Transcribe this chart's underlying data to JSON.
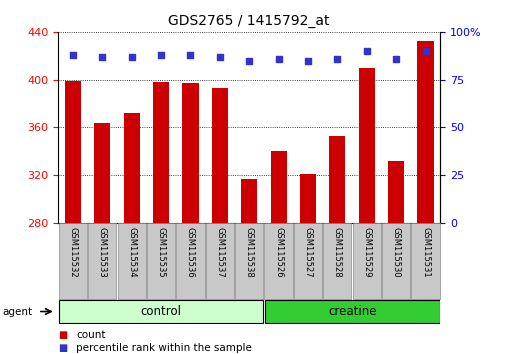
{
  "title": "GDS2765 / 1415792_at",
  "samples": [
    "GSM115532",
    "GSM115533",
    "GSM115534",
    "GSM115535",
    "GSM115536",
    "GSM115537",
    "GSM115538",
    "GSM115526",
    "GSM115527",
    "GSM115528",
    "GSM115529",
    "GSM115530",
    "GSM115531"
  ],
  "counts": [
    399,
    364,
    372,
    398,
    397,
    393,
    317,
    340,
    321,
    353,
    410,
    332,
    432
  ],
  "percentiles": [
    88,
    87,
    87,
    88,
    88,
    87,
    85,
    86,
    85,
    86,
    90,
    86,
    90
  ],
  "y_min": 280,
  "y_max": 440,
  "y_ticks": [
    280,
    320,
    360,
    400,
    440
  ],
  "right_y_ticks": [
    0,
    25,
    50,
    75,
    100
  ],
  "right_y_labels": [
    "0",
    "25",
    "50",
    "75",
    "100%"
  ],
  "n_control": 7,
  "n_creatine": 6,
  "bar_color": "#CC0000",
  "dot_color": "#3333CC",
  "control_bg": "#CCFFCC",
  "creatine_bg": "#33CC33",
  "tick_label_bg": "#C8C8C8",
  "tick_label_edge": "#888888",
  "agent_label": "agent",
  "control_label": "control",
  "creatine_label": "creatine",
  "legend_count": "count",
  "legend_percentile": "percentile rank within the sample",
  "title_fontsize": 10,
  "axis_fontsize": 8,
  "label_fontsize": 6,
  "group_fontsize": 8.5
}
